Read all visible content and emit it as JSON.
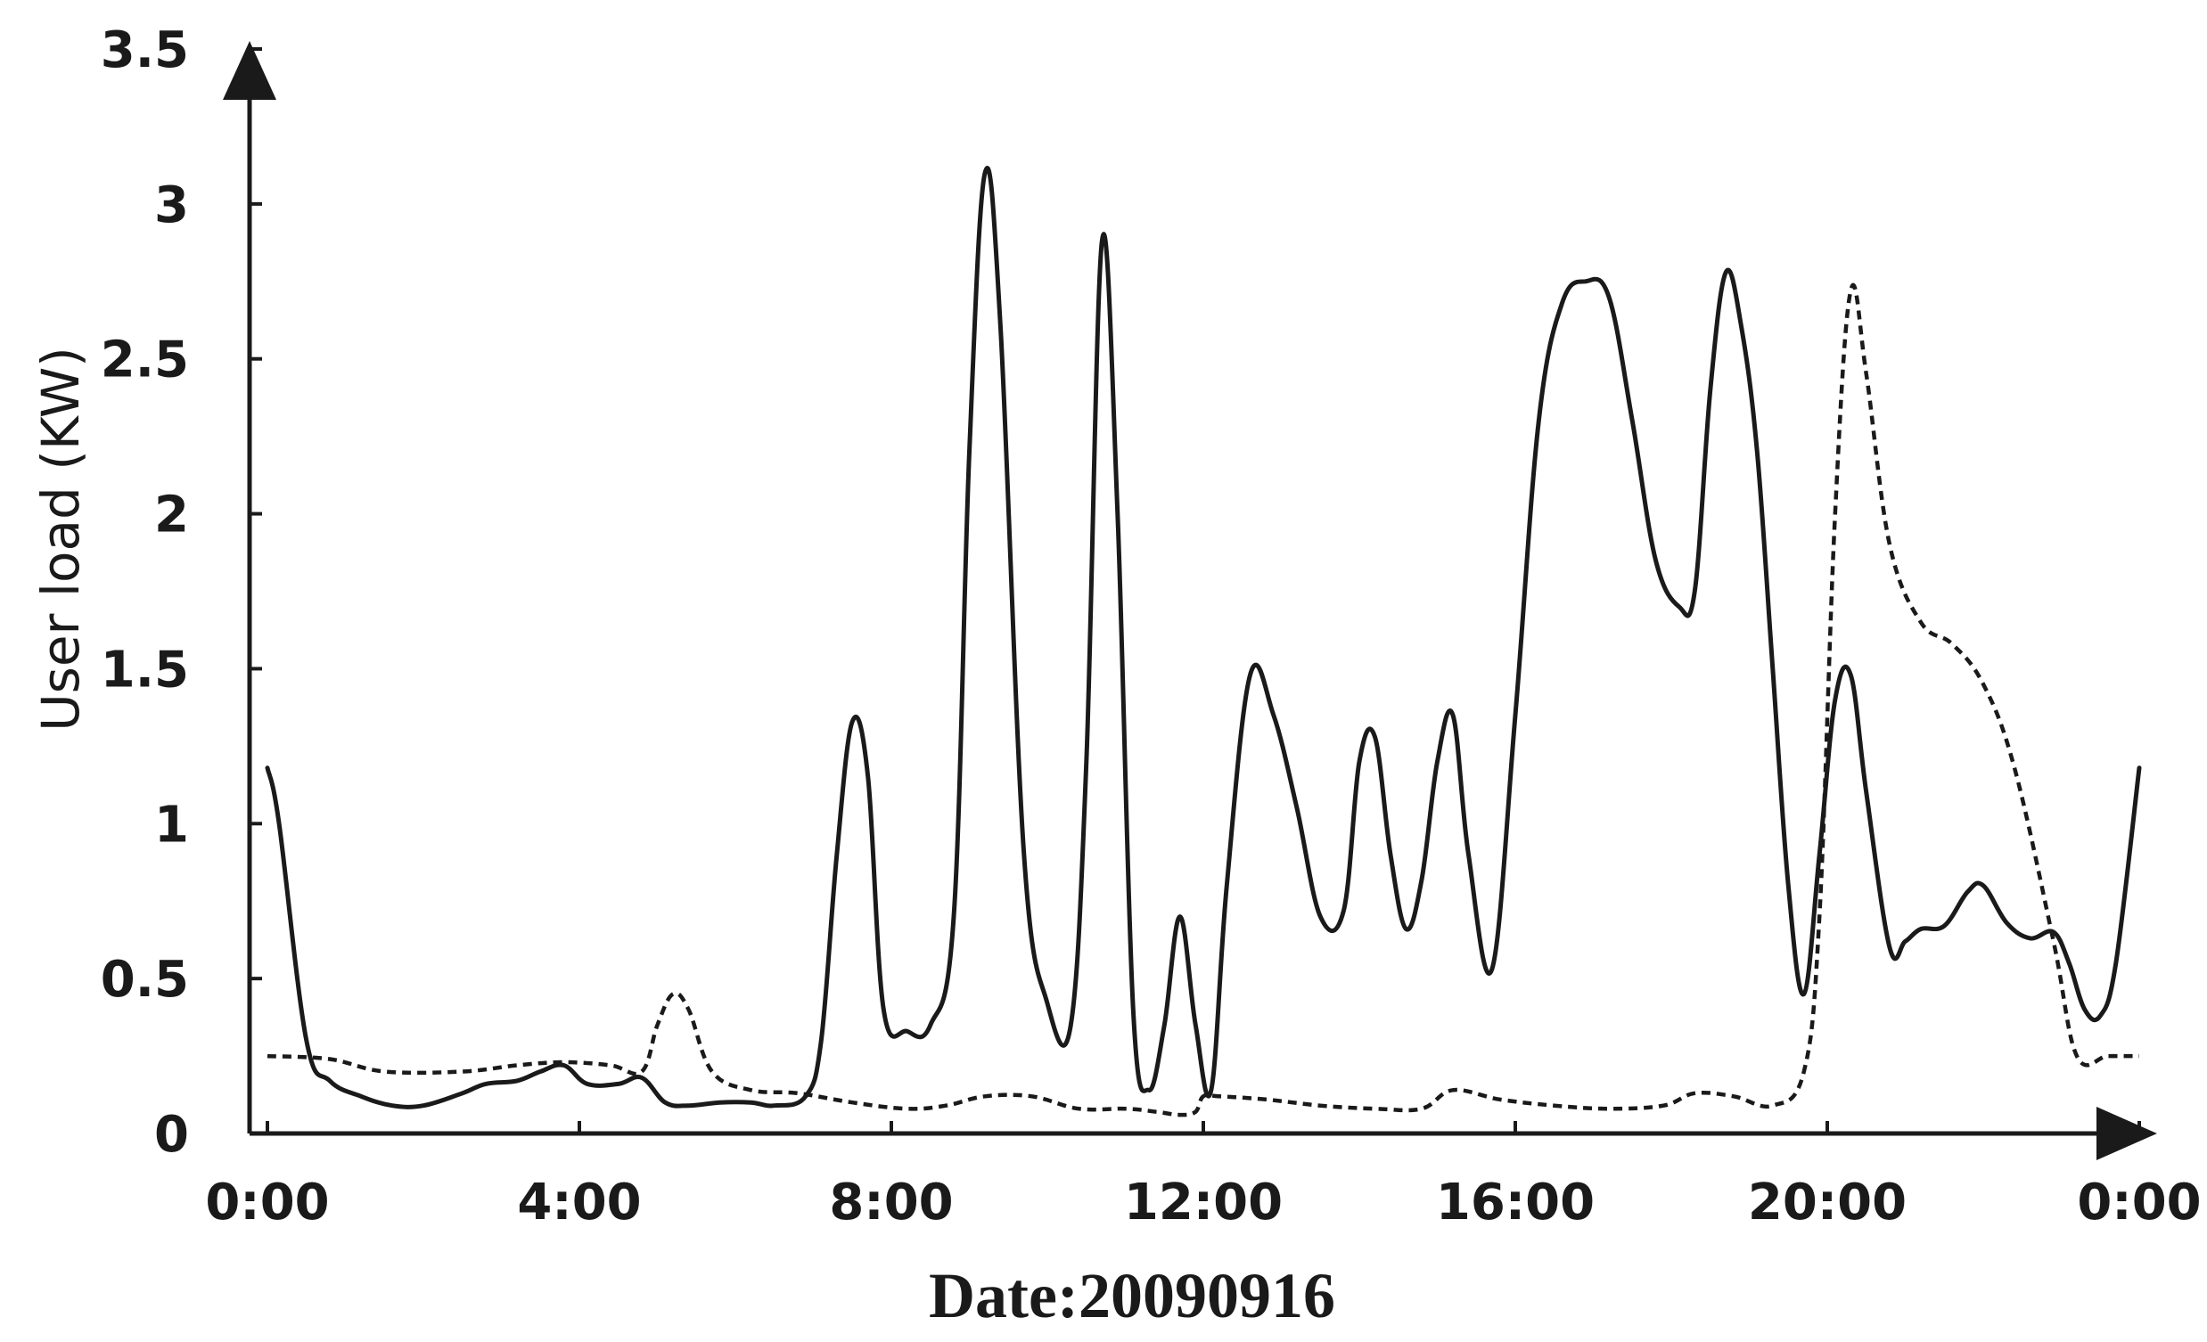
{
  "chart_data": {
    "type": "line",
    "xlabel": "Date:20090916",
    "ylabel": "User load (KW)",
    "ylim": [
      0,
      3.5
    ],
    "xlim": [
      0,
      24
    ],
    "x_ticks": [
      "0:00",
      "4:00",
      "8:00",
      "12:00",
      "16:00",
      "20:00",
      "0:00"
    ],
    "y_ticks": [
      "0",
      "0.5",
      "1",
      "1.5",
      "2",
      "2.5",
      "3",
      "3.5"
    ],
    "grid": false,
    "legend": "none",
    "series": [
      {
        "style": "solid",
        "x": [
          0,
          0.15,
          0.5,
          0.8,
          1.2,
          1.6,
          2.0,
          2.5,
          2.8,
          3.2,
          3.5,
          3.8,
          4.1,
          4.5,
          4.8,
          5.1,
          5.4,
          5.8,
          6.2,
          6.5,
          6.9,
          7.1,
          7.3,
          7.5,
          7.7,
          7.9,
          8.2,
          8.5,
          8.8,
          9.0,
          9.2,
          9.4,
          9.7,
          10.0,
          10.3,
          10.5,
          10.7,
          10.9,
          11.1,
          11.3,
          11.5,
          11.7,
          11.9,
          12.1,
          12.3,
          12.6,
          12.9,
          13.2,
          13.5,
          13.8,
          14.0,
          14.2,
          14.4,
          14.6,
          14.8,
          15.0,
          15.2,
          15.4,
          15.7,
          16.0,
          16.3,
          16.6,
          16.9,
          17.2,
          17.5,
          17.8,
          18.1,
          18.3,
          18.5,
          18.7,
          18.9,
          19.1,
          19.3,
          19.5,
          19.7,
          19.9,
          20.1,
          20.3,
          20.5,
          20.8,
          21.0,
          21.2,
          21.5,
          21.8,
          22.0,
          22.3,
          22.6,
          22.9,
          23.1,
          23.3,
          23.5,
          23.7,
          24.0
        ],
        "y": [
          1.18,
          1.0,
          0.3,
          0.17,
          0.12,
          0.09,
          0.09,
          0.13,
          0.16,
          0.17,
          0.2,
          0.22,
          0.16,
          0.16,
          0.18,
          0.1,
          0.09,
          0.1,
          0.1,
          0.09,
          0.12,
          0.3,
          0.9,
          1.33,
          1.15,
          0.4,
          0.33,
          0.35,
          0.7,
          2.2,
          3.1,
          2.6,
          0.9,
          0.42,
          0.35,
          1.2,
          2.88,
          2.0,
          0.4,
          0.14,
          0.35,
          0.7,
          0.35,
          0.14,
          0.8,
          1.48,
          1.35,
          1.05,
          0.7,
          0.72,
          1.2,
          1.28,
          0.9,
          0.66,
          0.82,
          1.2,
          1.35,
          0.9,
          0.53,
          1.35,
          2.3,
          2.68,
          2.75,
          2.7,
          2.3,
          1.85,
          1.7,
          1.75,
          2.4,
          2.78,
          2.6,
          2.2,
          1.5,
          0.8,
          0.45,
          0.9,
          1.4,
          1.48,
          1.1,
          0.6,
          0.62,
          0.66,
          0.67,
          0.78,
          0.8,
          0.68,
          0.63,
          0.65,
          0.55,
          0.4,
          0.38,
          0.55,
          1.18
        ]
      },
      {
        "style": "dotted",
        "x": [
          0,
          0.8,
          1.5,
          2.5,
          3.2,
          3.8,
          4.4,
          4.8,
          5.0,
          5.2,
          5.4,
          5.7,
          6.2,
          6.8,
          7.5,
          8.2,
          8.7,
          9.2,
          9.8,
          10.4,
          11.0,
          11.4,
          11.7,
          11.9,
          12.0,
          12.2,
          12.8,
          13.5,
          14.2,
          14.8,
          15.2,
          15.8,
          16.5,
          17.2,
          17.9,
          18.3,
          18.8,
          19.3,
          19.7,
          19.9,
          20.1,
          20.3,
          20.5,
          20.8,
          21.2,
          21.6,
          22.0,
          22.4,
          22.9,
          23.2,
          23.6,
          24.0
        ],
        "y": [
          0.25,
          0.24,
          0.2,
          0.2,
          0.22,
          0.23,
          0.22,
          0.2,
          0.35,
          0.45,
          0.4,
          0.2,
          0.14,
          0.13,
          0.1,
          0.08,
          0.09,
          0.12,
          0.12,
          0.08,
          0.08,
          0.07,
          0.06,
          0.07,
          0.12,
          0.12,
          0.11,
          0.09,
          0.08,
          0.08,
          0.14,
          0.11,
          0.09,
          0.08,
          0.09,
          0.13,
          0.12,
          0.09,
          0.2,
          0.7,
          2.0,
          2.72,
          2.45,
          1.9,
          1.65,
          1.58,
          1.45,
          1.18,
          0.62,
          0.25,
          0.25,
          0.25
        ]
      }
    ]
  }
}
